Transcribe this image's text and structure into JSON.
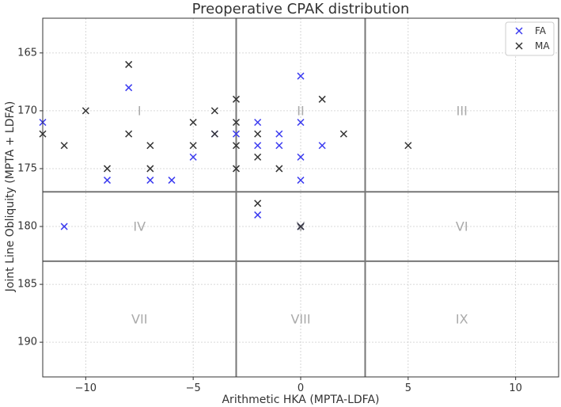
{
  "chart_data": {
    "type": "scatter",
    "title": "Preoperative CPAK distribution",
    "xlabel": "Arithmetic HKA (MPTA-LDFA)",
    "ylabel": "Joint Line Obliquity (MPTA + LDFA)",
    "xlim": [
      -12,
      12
    ],
    "ylim": [
      193,
      162
    ],
    "y_inverted": true,
    "xticks": [
      -10,
      -5,
      0,
      5,
      10
    ],
    "xtick_labels": [
      "−10",
      "−5",
      "0",
      "5",
      "10"
    ],
    "yticks": [
      165,
      170,
      175,
      180,
      185,
      190
    ],
    "ytick_labels": [
      "165",
      "170",
      "175",
      "180",
      "185",
      "190"
    ],
    "grid": true,
    "grid_style": "dotted",
    "legend_position": "top-right",
    "marker": "x",
    "divider_x": [
      -3,
      3
    ],
    "divider_y": [
      177,
      183
    ],
    "regions": [
      {
        "label": "I",
        "x": -7.5,
        "y": 170
      },
      {
        "label": "II",
        "x": 0,
        "y": 170
      },
      {
        "label": "III",
        "x": 7.5,
        "y": 170
      },
      {
        "label": "IV",
        "x": -7.5,
        "y": 180
      },
      {
        "label": "V",
        "x": 0,
        "y": 180
      },
      {
        "label": "VI",
        "x": 7.5,
        "y": 180
      },
      {
        "label": "VII",
        "x": -7.5,
        "y": 188
      },
      {
        "label": "VIII",
        "x": 0,
        "y": 188
      },
      {
        "label": "IX",
        "x": 7.5,
        "y": 188
      }
    ],
    "series": [
      {
        "name": "FA",
        "color": "#3b3bf0",
        "points": [
          [
            -12,
            171
          ],
          [
            -11,
            180
          ],
          [
            -9,
            176
          ],
          [
            -8,
            168
          ],
          [
            -7,
            176
          ],
          [
            -6,
            176
          ],
          [
            -5,
            174
          ],
          [
            -4,
            172
          ],
          [
            -3,
            172
          ],
          [
            -2,
            171
          ],
          [
            -2,
            173
          ],
          [
            -2,
            179
          ],
          [
            -1,
            172
          ],
          [
            -1,
            173
          ],
          [
            0,
            167
          ],
          [
            0,
            171
          ],
          [
            0,
            174
          ],
          [
            0,
            176
          ],
          [
            0,
            180
          ],
          [
            1,
            173
          ]
        ]
      },
      {
        "name": "MA",
        "color": "#333333",
        "points": [
          [
            -12,
            172
          ],
          [
            -11,
            173
          ],
          [
            -10,
            170
          ],
          [
            -9,
            175
          ],
          [
            -8,
            166
          ],
          [
            -8,
            172
          ],
          [
            -7,
            173
          ],
          [
            -7,
            175
          ],
          [
            -5,
            171
          ],
          [
            -5,
            173
          ],
          [
            -4,
            170
          ],
          [
            -4,
            172
          ],
          [
            -3,
            169
          ],
          [
            -3,
            171
          ],
          [
            -3,
            173
          ],
          [
            -3,
            175
          ],
          [
            -2,
            172
          ],
          [
            -2,
            174
          ],
          [
            -2,
            178
          ],
          [
            -1,
            175
          ],
          [
            0,
            180
          ],
          [
            1,
            169
          ],
          [
            2,
            172
          ],
          [
            5,
            173
          ]
        ]
      }
    ]
  }
}
